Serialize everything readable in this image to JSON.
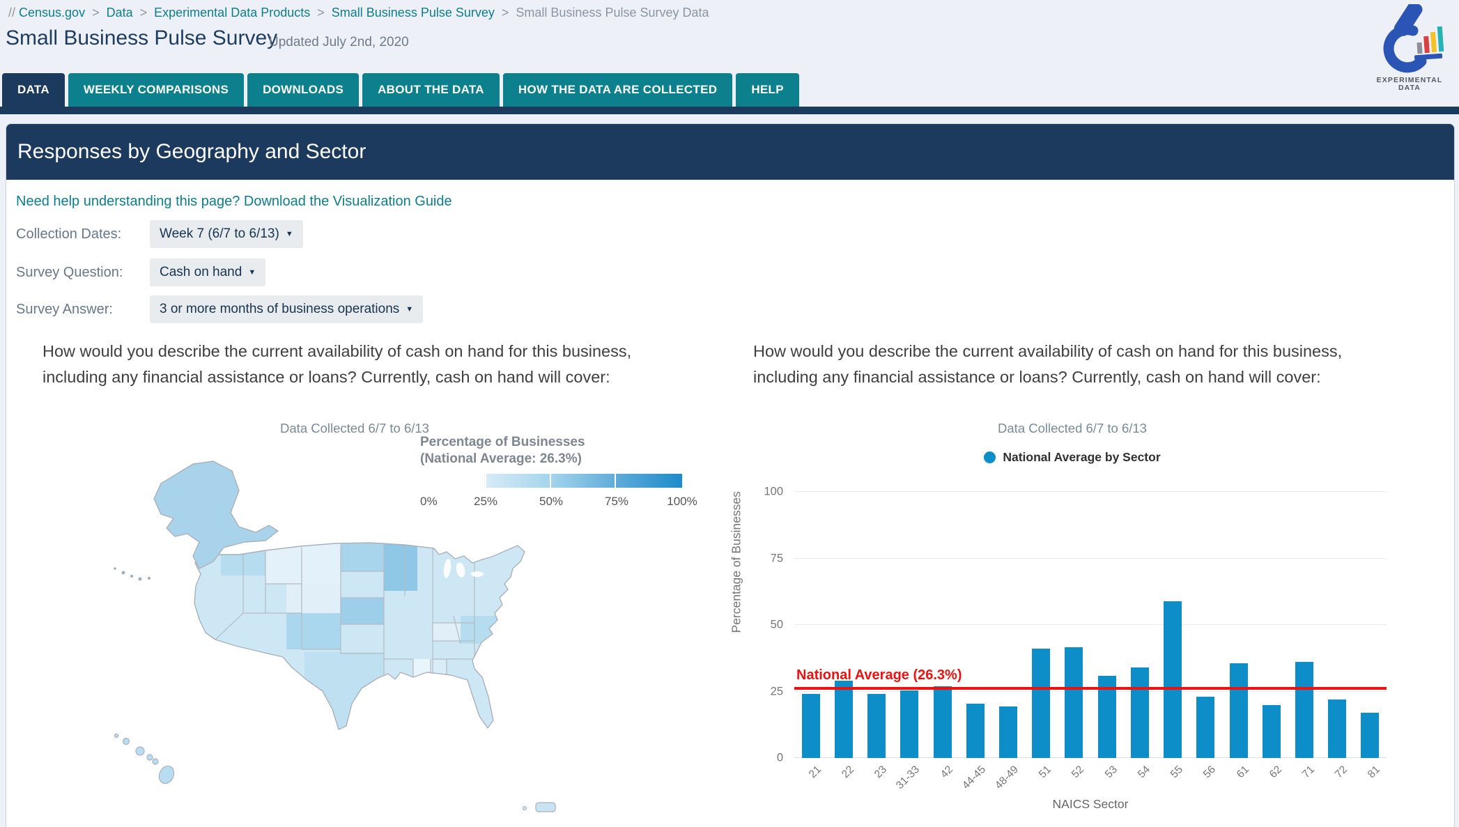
{
  "breadcrumb": {
    "prefix": "//",
    "separator": ">",
    "items": [
      {
        "label": "Census.gov",
        "current": false
      },
      {
        "label": "Data",
        "current": false
      },
      {
        "label": "Experimental Data Products",
        "current": false
      },
      {
        "label": "Small Business Pulse Survey",
        "current": false
      },
      {
        "label": "Small Business Pulse Survey Data",
        "current": true
      }
    ]
  },
  "header": {
    "title": "Small Business Pulse Survey",
    "updated": "Updated July 2nd, 2020",
    "logo_line1": "EXPERIMENTAL",
    "logo_line2": "DATA"
  },
  "tabs": [
    {
      "label": "DATA",
      "active": true
    },
    {
      "label": "WEEKLY COMPARISONS",
      "active": false
    },
    {
      "label": "DOWNLOADS",
      "active": false
    },
    {
      "label": "ABOUT THE DATA",
      "active": false
    },
    {
      "label": "HOW THE DATA ARE COLLECTED",
      "active": false
    },
    {
      "label": "HELP",
      "active": false
    }
  ],
  "section": {
    "title": "Responses by Geography and Sector",
    "help_link": "Need help understanding this page? Download the Visualization Guide"
  },
  "filters": [
    {
      "label": "Collection Dates:",
      "value": "Week 7 (6/7 to 6/13)"
    },
    {
      "label": "Survey Question:",
      "value": "Cash on hand"
    },
    {
      "label": "Survey Answer:",
      "value": "3 or more months of business operations"
    }
  ],
  "map_panel": {
    "question": "How would you describe the current availability of cash on hand for this business, including any financial assistance or loans? Currently, cash on hand will cover:",
    "subtitle": "Data Collected 6/7 to 6/13",
    "legend_title": "Percentage of Businesses",
    "legend_subtitle": "(National Average: 26.3%)",
    "legend_ticks": [
      "0%",
      "25%",
      "50%",
      "75%",
      "100%"
    ]
  },
  "chart_panel": {
    "question": "How would you describe the current availability of cash on hand for this business, including any financial assistance or loans? Currently, cash on hand will cover:",
    "subtitle": "Data Collected 6/7 to 6/13",
    "legend_label": "National Average by Sector",
    "annotation": "National Average (26.3%)"
  },
  "chart_data": {
    "type": "bar",
    "title": "Data Collected 6/7 to 6/13",
    "categories": [
      "21",
      "22",
      "23",
      "31-33",
      "42",
      "44-45",
      "48-49",
      "51",
      "52",
      "53",
      "54",
      "55",
      "56",
      "61",
      "62",
      "71",
      "72",
      "81"
    ],
    "values": [
      24,
      29,
      24,
      25.5,
      27,
      20.5,
      19.5,
      41,
      41.5,
      31,
      34,
      59,
      23,
      35.5,
      20,
      36,
      22,
      17
    ],
    "xlabel": "NAICS Sector",
    "ylabel": "Percentage of Businesses",
    "ylim": [
      0,
      100
    ],
    "yticks": [
      0,
      25,
      50,
      75,
      100
    ],
    "national_average": 26.3,
    "legend": "National Average by Sector",
    "bar_color": "#0d8ec9",
    "average_line_color": "#ee1111",
    "grid": true,
    "legend_position": "top-center"
  }
}
